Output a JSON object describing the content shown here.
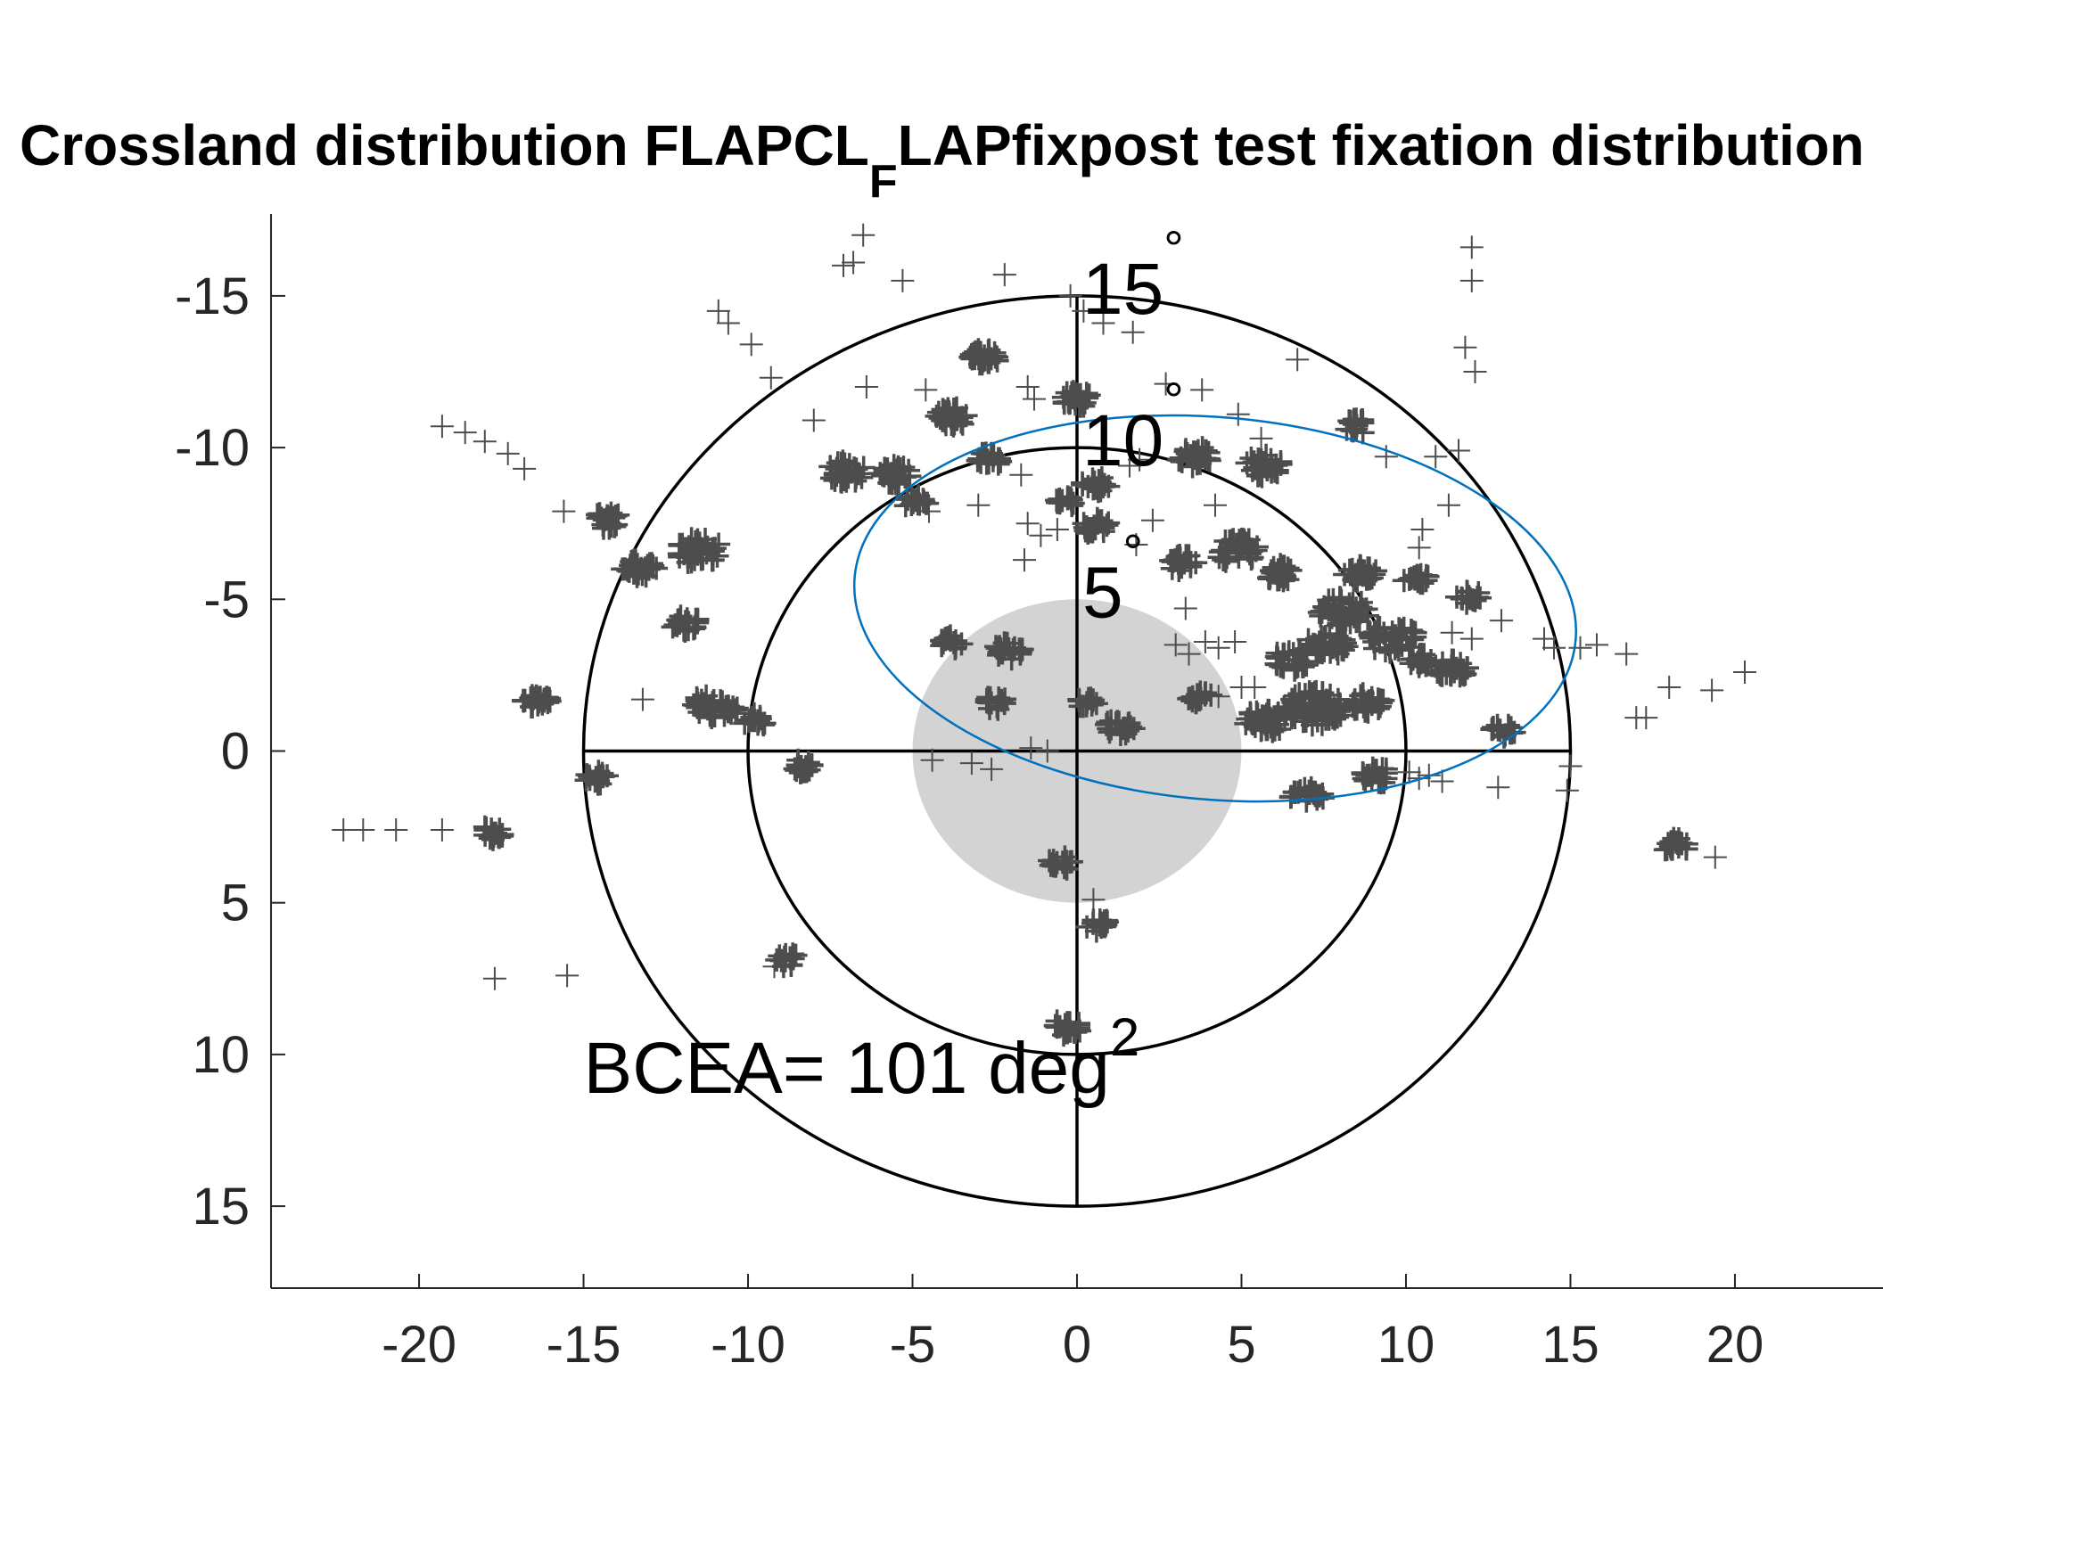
{
  "chart_data": {
    "type": "scatter",
    "title": {
      "prefix": "Crossland distribution FLAPCL",
      "subscript": "F",
      "suffix": "LAPfixpost test fixation distribution"
    },
    "xlabel": "",
    "ylabel": "",
    "xlim": [
      -24.5,
      24.5
    ],
    "ylim": [
      -17.7,
      17.7
    ],
    "y_reversed": true,
    "grid": false,
    "x_ticks": [
      -20,
      -15,
      -10,
      -5,
      0,
      5,
      10,
      15,
      20
    ],
    "x_tick_labels": [
      "-20",
      "-15",
      "-10",
      "-5",
      "0",
      "5",
      "10",
      "15",
      "20"
    ],
    "y_ticks": [
      -15,
      -10,
      -5,
      0,
      5,
      10,
      15
    ],
    "y_tick_labels": [
      "-15",
      "-10",
      "-5",
      "0",
      "5",
      "10",
      "15"
    ],
    "rings": [
      {
        "radius": 5,
        "label": "5",
        "degree_symbol": "°"
      },
      {
        "radius": 10,
        "label": "10",
        "degree_symbol": "°"
      },
      {
        "radius": 15,
        "label": "15",
        "degree_symbol": "°"
      }
    ],
    "scotoma": {
      "cx": 0,
      "cy": 0,
      "r": 5,
      "color": "#d3d3d3"
    },
    "bcea_ellipse": {
      "cx": 4.2,
      "cy": -4.7,
      "rx": 11.0,
      "ry": 6.3,
      "angle_deg": 5,
      "color": "#0072bd"
    },
    "annotation": {
      "text": "BCEA= 101 deg",
      "superscript": "2",
      "x": -15,
      "y": 10.5
    },
    "marker": {
      "symbol": "+",
      "color": "#4d4d4d"
    },
    "clusters": [
      [
        0.0,
        -11.6,
        0.35,
        30
      ],
      [
        -2.8,
        -13.0,
        0.35,
        25
      ],
      [
        -3.8,
        -11.0,
        0.4,
        30
      ],
      [
        -7.0,
        -9.2,
        0.45,
        30
      ],
      [
        -5.5,
        -9.1,
        0.4,
        30
      ],
      [
        -2.7,
        -9.6,
        0.3,
        18
      ],
      [
        -4.9,
        -8.2,
        0.3,
        18
      ],
      [
        0.6,
        -8.8,
        0.35,
        20
      ],
      [
        0.6,
        -7.4,
        0.35,
        18
      ],
      [
        -11.5,
        -6.6,
        0.55,
        40
      ],
      [
        -14.3,
        -7.6,
        0.35,
        22
      ],
      [
        -13.3,
        -6.0,
        0.4,
        25
      ],
      [
        -11.9,
        -4.2,
        0.35,
        20
      ],
      [
        -16.4,
        -1.6,
        0.35,
        25
      ],
      [
        -11.0,
        -1.5,
        0.55,
        35
      ],
      [
        -9.8,
        -1.0,
        0.3,
        15
      ],
      [
        -8.3,
        0.5,
        0.3,
        15
      ],
      [
        -14.6,
        0.9,
        0.3,
        16
      ],
      [
        -17.8,
        2.7,
        0.3,
        16
      ],
      [
        -2.1,
        -3.3,
        0.35,
        22
      ],
      [
        -3.8,
        -3.6,
        0.3,
        15
      ],
      [
        -2.5,
        -1.6,
        0.3,
        15
      ],
      [
        0.3,
        -1.6,
        0.25,
        12
      ],
      [
        1.3,
        -0.8,
        0.35,
        20
      ],
      [
        3.7,
        -1.8,
        0.3,
        15
      ],
      [
        -0.5,
        3.7,
        0.3,
        16
      ],
      [
        0.6,
        5.7,
        0.3,
        15
      ],
      [
        -0.3,
        9.1,
        0.35,
        22
      ],
      [
        -8.8,
        6.9,
        0.3,
        14
      ],
      [
        3.5,
        -9.7,
        0.45,
        30
      ],
      [
        5.7,
        -9.4,
        0.45,
        30
      ],
      [
        4.9,
        -6.6,
        0.55,
        40
      ],
      [
        3.2,
        -6.2,
        0.35,
        22
      ],
      [
        6.2,
        -5.9,
        0.4,
        25
      ],
      [
        8.6,
        -5.9,
        0.4,
        30
      ],
      [
        8.5,
        -10.7,
        0.3,
        18
      ],
      [
        10.3,
        -5.7,
        0.3,
        15
      ],
      [
        11.9,
        -5.1,
        0.3,
        15
      ],
      [
        8.1,
        -4.6,
        0.6,
        50
      ],
      [
        9.6,
        -3.7,
        0.6,
        40
      ],
      [
        7.6,
        -3.5,
        0.5,
        35
      ],
      [
        6.5,
        -3.0,
        0.45,
        30
      ],
      [
        10.4,
        -3.0,
        0.35,
        20
      ],
      [
        11.4,
        -2.7,
        0.4,
        25
      ],
      [
        7.2,
        -1.4,
        0.7,
        70
      ],
      [
        5.7,
        -1.0,
        0.5,
        40
      ],
      [
        8.8,
        -1.6,
        0.4,
        25
      ],
      [
        9.1,
        0.8,
        0.35,
        20
      ],
      [
        13.0,
        -0.7,
        0.3,
        15
      ],
      [
        7.0,
        1.5,
        0.4,
        25
      ],
      [
        18.2,
        3.1,
        0.35,
        20
      ],
      [
        -0.4,
        -8.2,
        0.25,
        12
      ]
    ],
    "points": [
      [
        -19.3,
        -10.7
      ],
      [
        -18.6,
        -10.5
      ],
      [
        -18.0,
        -10.2
      ],
      [
        -17.3,
        -9.8
      ],
      [
        -16.8,
        -9.3
      ],
      [
        -15.6,
        -7.9
      ],
      [
        -10.9,
        -14.5
      ],
      [
        -10.6,
        -14.1
      ],
      [
        -9.9,
        -13.4
      ],
      [
        -9.3,
        -12.3
      ],
      [
        -8.0,
        -10.9
      ],
      [
        -6.5,
        -17.0
      ],
      [
        -6.8,
        -16.1
      ],
      [
        -7.1,
        -16.0
      ],
      [
        -5.3,
        -15.5
      ],
      [
        -2.2,
        -15.7
      ],
      [
        -4.6,
        -11.9
      ],
      [
        -1.5,
        -12.0
      ],
      [
        -1.3,
        -11.6
      ],
      [
        0.2,
        -14.5
      ],
      [
        1.7,
        -13.8
      ],
      [
        2.7,
        -12.1
      ],
      [
        3.8,
        -11.9
      ],
      [
        4.9,
        -11.1
      ],
      [
        5.6,
        -10.3
      ],
      [
        1.9,
        -9.6
      ],
      [
        1.6,
        -9.4
      ],
      [
        4.2,
        -8.1
      ],
      [
        -3.0,
        -8.1
      ],
      [
        -1.5,
        -7.5
      ],
      [
        -1.1,
        -7.1
      ],
      [
        -0.6,
        -7.3
      ],
      [
        -1.6,
        -6.3
      ],
      [
        1.8,
        -6.8
      ],
      [
        3.3,
        -4.7
      ],
      [
        3.0,
        -3.5
      ],
      [
        3.4,
        -3.2
      ],
      [
        3.9,
        -3.6
      ],
      [
        4.3,
        -3.4
      ],
      [
        4.8,
        -3.6
      ],
      [
        4.3,
        -1.8
      ],
      [
        5.0,
        -2.1
      ],
      [
        5.4,
        -2.1
      ],
      [
        9.4,
        -9.7
      ],
      [
        10.9,
        -9.7
      ],
      [
        11.6,
        -9.9
      ],
      [
        11.8,
        -13.3
      ],
      [
        12.0,
        -16.6
      ],
      [
        12.0,
        -15.5
      ],
      [
        12.1,
        -12.5
      ],
      [
        11.3,
        -8.1
      ],
      [
        10.5,
        -7.3
      ],
      [
        10.4,
        -6.7
      ],
      [
        11.4,
        -3.9
      ],
      [
        12.0,
        -3.7
      ],
      [
        12.9,
        -4.3
      ],
      [
        14.2,
        -3.7
      ],
      [
        14.5,
        -3.4
      ],
      [
        15.3,
        -3.4
      ],
      [
        15.8,
        -3.5
      ],
      [
        16.7,
        -3.2
      ],
      [
        17.0,
        -1.1
      ],
      [
        17.3,
        -1.1
      ],
      [
        18.0,
        -2.1
      ],
      [
        19.3,
        -2.0
      ],
      [
        20.3,
        -2.6
      ],
      [
        19.4,
        3.5
      ],
      [
        14.9,
        1.3
      ],
      [
        12.8,
        1.2
      ],
      [
        11.1,
        1.0
      ],
      [
        10.1,
        0.7
      ],
      [
        10.4,
        0.9
      ],
      [
        10.7,
        0.8
      ],
      [
        15.0,
        0.5
      ],
      [
        -2.6,
        0.6
      ],
      [
        -1.4,
        -0.1
      ],
      [
        -0.9,
        0.0
      ],
      [
        -3.2,
        0.4
      ],
      [
        -4.4,
        0.3
      ],
      [
        -22.3,
        2.6
      ],
      [
        -21.7,
        2.6
      ],
      [
        -20.7,
        2.6
      ],
      [
        -19.3,
        2.6
      ],
      [
        -17.7,
        7.5
      ],
      [
        -15.5,
        7.4
      ],
      [
        -9.2,
        7.1
      ],
      [
        0.5,
        4.9
      ],
      [
        -13.2,
        -1.7
      ],
      [
        -4.5,
        -7.9
      ],
      [
        -1.7,
        -9.1
      ],
      [
        -6.4,
        -12.0
      ],
      [
        -0.2,
        -15.0
      ],
      [
        0.8,
        -14.1
      ],
      [
        2.3,
        -7.6
      ],
      [
        6.7,
        -12.9
      ]
    ]
  }
}
